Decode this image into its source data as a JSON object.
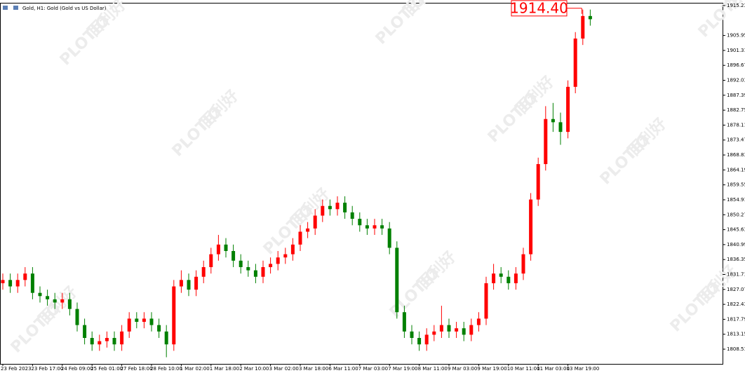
{
  "chart_data": {
    "type": "candlestick",
    "title": "Gold, H1:  Gold (Gold vs US Dollar)",
    "watermark": [
      "PLOTIO",
      "百利好"
    ],
    "up_color": "#ff0000",
    "down_color": "#008000",
    "current_price": {
      "value": 1914.4,
      "label": "1914.40"
    },
    "categories": [
      "23 Feb 2023",
      null,
      null,
      null,
      "23 Feb 17:00",
      null,
      null,
      null,
      "24 Feb 09:00",
      null,
      null,
      null,
      "25 Feb 01:00",
      null,
      null,
      null,
      "27 Feb 18:00",
      null,
      null,
      null,
      "28 Feb 10:00",
      null,
      null,
      null,
      "1 Mar 02:00",
      null,
      null,
      null,
      "1 Mar 18:00",
      null,
      null,
      null,
      "2 Mar 10:00",
      null,
      null,
      null,
      "3 Mar 02:00",
      null,
      null,
      null,
      "3 Mar 18:00",
      null,
      null,
      null,
      "6 Mar 11:00",
      null,
      null,
      null,
      "7 Mar 03:00",
      null,
      null,
      null,
      "7 Mar 19:00",
      null,
      null,
      null,
      "8 Mar 11:00",
      null,
      null,
      null,
      "9 Mar 03:00",
      null,
      null,
      null,
      "9 Mar 19:00",
      null,
      null,
      null,
      "10 Mar 11:00",
      null,
      null,
      null,
      "11 Mar 03:00",
      null,
      null,
      null,
      "13 Mar 19:00",
      null,
      null,
      null
    ],
    "open": [
      1829,
      1830,
      1828,
      1830,
      1832,
      1826,
      1825,
      1824,
      1823,
      1824,
      1821,
      1816,
      1812,
      1810,
      1811,
      1812,
      1810,
      1814,
      1818,
      1817,
      1818,
      1816,
      1814,
      1810,
      1828,
      1830,
      1827,
      1831,
      1834,
      1838,
      1841,
      1839,
      1836,
      1834,
      1833,
      1831,
      1834,
      1835,
      1837,
      1838,
      1841,
      1845,
      1846,
      1850,
      1853,
      1852,
      1854,
      1851,
      1849,
      1847,
      1846,
      1847,
      1846,
      1840,
      1820,
      1814,
      1812,
      1810,
      1813,
      1814,
      1816,
      1814,
      1815,
      1813,
      1816,
      1818,
      1829,
      1832,
      1831,
      1829,
      1832,
      1838,
      1855,
      1866,
      1880,
      1879,
      1876,
      1890,
      1905,
      1912
    ],
    "high": [
      1832,
      1832,
      1832,
      1834,
      1834,
      1828,
      1827,
      1826,
      1826,
      1826,
      1823,
      1818,
      1814,
      1813,
      1814,
      1814,
      1816,
      1820,
      1820,
      1820,
      1820,
      1818,
      1816,
      1830,
      1833,
      1832,
      1833,
      1836,
      1840,
      1844,
      1843,
      1841,
      1838,
      1836,
      1835,
      1836,
      1837,
      1839,
      1840,
      1843,
      1847,
      1848,
      1852,
      1855,
      1855,
      1856,
      1856,
      1853,
      1851,
      1849,
      1849,
      1849,
      1848,
      1842,
      1822,
      1816,
      1814,
      1815,
      1816,
      1822,
      1818,
      1817,
      1817,
      1818,
      1820,
      1831,
      1835,
      1834,
      1833,
      1834,
      1840,
      1857,
      1868,
      1884,
      1885,
      1882,
      1892,
      1907,
      1914,
      1914
    ],
    "low": [
      1827,
      1826,
      1826,
      1828,
      1824,
      1823,
      1822,
      1821,
      1821,
      1819,
      1814,
      1810,
      1808,
      1808,
      1809,
      1808,
      1808,
      1812,
      1815,
      1815,
      1814,
      1812,
      1806,
      1808,
      1826,
      1825,
      1825,
      1829,
      1832,
      1836,
      1837,
      1834,
      1832,
      1831,
      1829,
      1829,
      1832,
      1833,
      1835,
      1836,
      1839,
      1843,
      1844,
      1848,
      1850,
      1850,
      1849,
      1847,
      1845,
      1844,
      1844,
      1844,
      1838,
      1818,
      1812,
      1810,
      1808,
      1808,
      1811,
      1812,
      1812,
      1812,
      1811,
      1811,
      1814,
      1816,
      1827,
      1829,
      1827,
      1827,
      1830,
      1836,
      1853,
      1864,
      1876,
      1872,
      1874,
      1888,
      1903,
      1909
    ],
    "close": [
      1830,
      1828,
      1830,
      1832,
      1826,
      1825,
      1824,
      1823,
      1824,
      1821,
      1816,
      1812,
      1810,
      1811,
      1812,
      1810,
      1814,
      1818,
      1817,
      1818,
      1816,
      1814,
      1810,
      1828,
      1830,
      1827,
      1831,
      1834,
      1838,
      1841,
      1839,
      1836,
      1834,
      1833,
      1831,
      1834,
      1835,
      1837,
      1838,
      1841,
      1845,
      1846,
      1850,
      1853,
      1852,
      1854,
      1851,
      1849,
      1847,
      1846,
      1847,
      1846,
      1840,
      1820,
      1814,
      1812,
      1810,
      1813,
      1814,
      1816,
      1814,
      1815,
      1813,
      1816,
      1818,
      1829,
      1832,
      1831,
      1829,
      1832,
      1838,
      1855,
      1866,
      1880,
      1879,
      1876,
      1890,
      1905,
      1912,
      1911
    ],
    "ylim": [
      1803.94,
      1916.1
    ],
    "yticks": [
      1915.23,
      1905.95,
      1901.31,
      1896.67,
      1892.03,
      1887.39,
      1882.75,
      1878.11,
      1873.47,
      1868.83,
      1864.19,
      1859.55,
      1854.91,
      1850.27,
      1845.63,
      1840.99,
      1836.35,
      1831.71,
      1827.07,
      1822.43,
      1817.79,
      1813.15,
      1808.51
    ]
  }
}
